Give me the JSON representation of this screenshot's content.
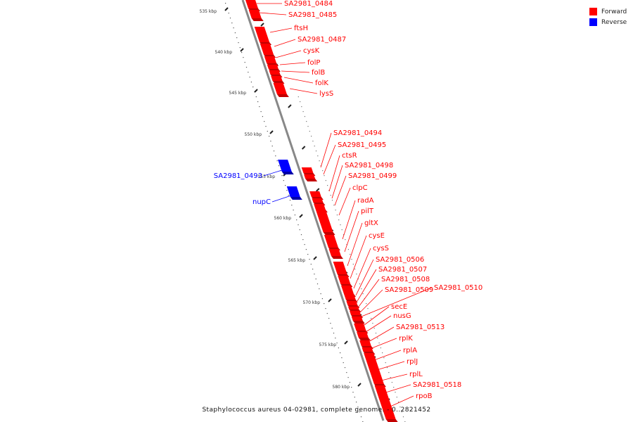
{
  "caption": "Staphylococcus aureus 04-02981, complete genome. - 0..2821452",
  "legend": [
    {
      "label": "Forward",
      "color": "#ff0000"
    },
    {
      "label": "Reverse",
      "color": "#0000ff"
    }
  ],
  "strand_colors": {
    "forward": "#ff0000",
    "reverse": "#0000ff",
    "forward_dark": "#c40000",
    "reverse_dark": "#0000a8"
  },
  "ticks": [
    "535 kbp",
    "540 kbp",
    "545 kbp",
    "550 kbp",
    "555 kbp",
    "560 kbp",
    "565 kbp",
    "570 kbp",
    "575 kbp",
    "580 kbp"
  ],
  "forward_genes": [
    "SA2981_0484",
    "SA2981_0485",
    "ftsH",
    "SA2981_0487",
    "cysK",
    "folP",
    "folB",
    "folK",
    "lysS",
    "SA2981_0494",
    "SA2981_0495",
    "ctsR",
    "SA2981_0498",
    "SA2981_0499",
    "clpC",
    "radA",
    "pilT",
    "gltX",
    "cysE",
    "cysS",
    "SA2981_0506",
    "SA2981_0507",
    "SA2981_0508",
    "SA2981_0509",
    "SA2981_0510",
    "secE",
    "nusG",
    "SA2981_0513",
    "rplK",
    "rplA",
    "rplJ",
    "rplL",
    "SA2981_0518",
    "rpoB"
  ],
  "reverse_genes": [
    "SA2981_0493",
    "nupC"
  ]
}
